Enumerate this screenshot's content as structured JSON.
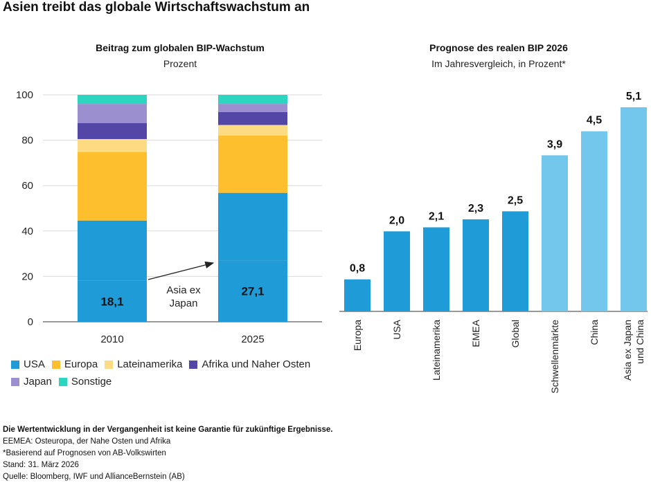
{
  "title": "Asien treibt das globale Wirtschaftswachstum an",
  "colors": {
    "usa": "#1f9bd7",
    "asia_ex_japan": "#1f9bd7",
    "europa": "#fdbf2d",
    "lateinamerika": "#fddb82",
    "afrika": "#5346a6",
    "japan": "#9b8fd0",
    "sonstige": "#2dd4bf",
    "dark_bar": "#1f9bd7",
    "light_bar": "#73c6ec",
    "grid": "#d9d9d9"
  },
  "chart_data": [
    {
      "type": "bar",
      "stacked": true,
      "title": "Beitrag zum globalen BIP-Wachstum",
      "subtitle": "Prozent",
      "categories": [
        "2010",
        "2025"
      ],
      "ylim": [
        0,
        100
      ],
      "yticks": [
        0,
        20,
        40,
        60,
        80,
        100
      ],
      "series": [
        {
          "name": "USA",
          "key": "usa",
          "values": [
            18.1,
            27.1
          ],
          "labels": [
            "18,1",
            "27,1"
          ]
        },
        {
          "name": "",
          "key": "asia_ex_japan",
          "values": [
            26.5,
            29.7
          ]
        },
        {
          "name": "Europa",
          "key": "europa",
          "values": [
            30.2,
            25.3
          ]
        },
        {
          "name": "Lateinamerika",
          "key": "lateinamerika",
          "values": [
            5.7,
            4.6
          ]
        },
        {
          "name": "Afrika und Naher Osten",
          "key": "afrika",
          "values": [
            7.0,
            5.7
          ]
        },
        {
          "name": "Japan",
          "key": "japan",
          "values": [
            8.5,
            3.6
          ]
        },
        {
          "name": "Sonstige",
          "key": "sonstige",
          "values": [
            4.0,
            4.0
          ]
        }
      ],
      "annotation": {
        "lines": [
          "Asia ex",
          "Japan"
        ]
      },
      "grid": true,
      "legend": "bottom"
    },
    {
      "type": "bar",
      "title": "Prognose des realen BIP 2026",
      "subtitle": "Im Jahresvergleich, in Prozent*",
      "categories": [
        {
          "lines": [
            "Europa"
          ],
          "shade": "dark"
        },
        {
          "lines": [
            "USA"
          ],
          "shade": "dark"
        },
        {
          "lines": [
            "Lateinamerika"
          ],
          "shade": "dark"
        },
        {
          "lines": [
            "EMEA"
          ],
          "shade": "dark"
        },
        {
          "lines": [
            "Global"
          ],
          "shade": "dark"
        },
        {
          "lines": [
            "Schwellenmärkte"
          ],
          "shade": "light"
        },
        {
          "lines": [
            "China"
          ],
          "shade": "light"
        },
        {
          "lines": [
            "Asia ex Japan",
            "und China"
          ],
          "shade": "light"
        }
      ],
      "values": [
        0.8,
        2.0,
        2.1,
        2.3,
        2.5,
        3.9,
        4.5,
        5.1
      ],
      "labels": [
        "0,8",
        "2,0",
        "2,1",
        "2,3",
        "2,5",
        "3,9",
        "4,5",
        "5,1"
      ],
      "ylim": [
        0,
        5.5
      ],
      "grid": false
    }
  ],
  "legend": [
    {
      "label": "USA",
      "key": "usa"
    },
    {
      "label": "Europa",
      "key": "europa"
    },
    {
      "label": "Lateinamerika",
      "key": "lateinamerika"
    },
    {
      "label": "Afrika und Naher Osten",
      "key": "afrika"
    },
    {
      "label": "Japan",
      "key": "japan"
    },
    {
      "label": "Sonstige",
      "key": "sonstige"
    }
  ],
  "notes": {
    "disclaimer": "Die Wertentwicklung in der Vergangenheit ist keine Garantie für zukünftige Ergebnisse.",
    "emea": "EEMEA: Osteuropa, der Nahe Osten und Afrika",
    "basis": "*Basierend auf Prognosen von AB-Volkswirten",
    "stand": "Stand: 31. März 2026",
    "quelle": "Quelle: Bloomberg, IWF und AllianceBernstein (AB)"
  }
}
